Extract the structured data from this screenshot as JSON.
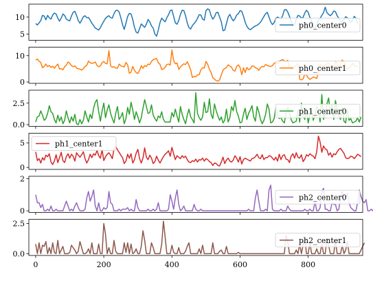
{
  "chart_data": {
    "type": "line",
    "title": "",
    "xlabel": "",
    "xlim": [
      -20,
      960
    ],
    "x_ticks": [
      0,
      200,
      400,
      600,
      800
    ],
    "x_tick_labels": [
      "0",
      "200",
      "400",
      "600",
      "800"
    ],
    "x_step": 5,
    "n_points": 190,
    "panels": [
      {
        "name": "ph0_center0",
        "color": "#1f77b4",
        "ylim": [
          3.2,
          13.8
        ],
        "yticks": [
          5,
          10
        ],
        "ytick_labels": [
          "5",
          "10"
        ],
        "legend": "right",
        "values": [
          8.1,
          7.7,
          8.3,
          9.0,
          10.5,
          10.3,
          9.2,
          10.5,
          9.8,
          9.4,
          10.6,
          11.2,
          10.9,
          9.7,
          8.8,
          9.7,
          10.9,
          10.5,
          9.4,
          9.1,
          8.9,
          10.3,
          11.4,
          11.7,
          10.5,
          9.0,
          8.2,
          9.1,
          10.1,
          10.4,
          9.8,
          9.9,
          9.1,
          8.2,
          7.5,
          6.8,
          6.5,
          6.2,
          6.9,
          7.9,
          8.8,
          9.6,
          10.1,
          10.4,
          9.8,
          9.7,
          11.0,
          11.9,
          12.0,
          11.5,
          9.8,
          7.8,
          6.4,
          8.2,
          10.2,
          11.1,
          10.9,
          9.3,
          7.0,
          5.6,
          5.3,
          6.6,
          8.0,
          7.5,
          7.0,
          7.9,
          9.3,
          8.6,
          7.4,
          6.8,
          5.0,
          4.4,
          6.2,
          8.4,
          9.7,
          9.1,
          8.6,
          9.8,
          10.7,
          11.9,
          12.1,
          10.2,
          8.3,
          7.9,
          9.0,
          10.8,
          12.0,
          11.9,
          10.4,
          8.3,
          6.9,
          6.5,
          7.5,
          8.1,
          8.7,
          9.6,
          10.7,
          10.6,
          9.4,
          9.1,
          11.9,
          12.4,
          12.1,
          10.4,
          9.4,
          10.1,
          11.3,
          11.4,
          10.0,
          8.6,
          6.0,
          6.2,
          8.1,
          10.0,
          10.8,
          9.7,
          8.9,
          9.5,
          10.6,
          11.0,
          11.9,
          11.7,
          10.3,
          8.5,
          7.3,
          6.6,
          6.3,
          6.7,
          7.1,
          7.4,
          7.6,
          8.0,
          8.5,
          9.3,
          10.2,
          11.0,
          11.4,
          10.0,
          8.6,
          7.8,
          8.4,
          9.6,
          10.0,
          9.7,
          9.4,
          10.4,
          12.1,
          12.2,
          11.5,
          10.2,
          8.8,
          7.4,
          7.8,
          9.4,
          10.5,
          10.3,
          9.7,
          9.9,
          11.2,
          12.0,
          11.4,
          9.9,
          8.9,
          7.1,
          6.3,
          7.8,
          9.2,
          9.6,
          10.5,
          11.3,
          12.9,
          11.3,
          10.8,
          10.4,
          10.9,
          11.8,
          11.6,
          10.4,
          9.6,
          8.7,
          8.6,
          9.3,
          10.1,
          9.8,
          9.3,
          8.4,
          9.1,
          10.2,
          9.7,
          8.1
        ]
      },
      {
        "name": "ph0_center1",
        "color": "#ff7f0e",
        "ylim": [
          -0.5,
          13.2
        ],
        "yticks": [
          0,
          10
        ],
        "ytick_labels": [
          "0",
          "10"
        ],
        "legend": "right",
        "values": [
          8.3,
          8.7,
          7.9,
          7.4,
          5.4,
          5.9,
          6.8,
          5.8,
          6.3,
          5.5,
          6.0,
          5.2,
          6.1,
          6.8,
          4.9,
          5.1,
          4.6,
          5.8,
          6.4,
          7.6,
          7.1,
          6.2,
          5.8,
          6.1,
          5.3,
          5.0,
          4.9,
          4.5,
          5.1,
          5.9,
          6.3,
          7.9,
          7.3,
          7.1,
          7.2,
          7.6,
          6.3,
          5.8,
          6.1,
          7.3,
          7.8,
          7.0,
          6.9,
          11.9,
          6.1,
          5.6,
          5.8,
          5.3,
          5.2,
          6.8,
          6.1,
          5.9,
          5.7,
          7.4,
          6.5,
          3.3,
          3.7,
          5.9,
          4.4,
          3.6,
          3.2,
          4.4,
          6.2,
          5.2,
          6.2,
          5.9,
          6.8,
          6.6,
          7.8,
          8.5,
          8.7,
          8.9,
          7.3,
          6.7,
          4.7,
          5.0,
          5.5,
          6.6,
          6.8,
          6.4,
          12.1,
          8.1,
          6.9,
          7.2,
          4.8,
          5.7,
          6.4,
          6.9,
          6.6,
          7.7,
          6.3,
          4.6,
          1.7,
          2.1,
          2.0,
          2.7,
          2.8,
          4.6,
          5.4,
          5.3,
          7.8,
          6.7,
          4.8,
          3.6,
          1.6,
          1.1,
          0.5,
          0.3,
          0.8,
          2.7,
          4.5,
          5.1,
          5.5,
          6.5,
          6.0,
          5.6,
          4.4,
          4.1,
          5.9,
          6.5,
          5.5,
          2.7,
          5.4,
          3.6,
          5.5,
          4.7,
          5.0,
          6.1,
          6.0,
          5.4,
          5.2,
          4.4,
          5.4,
          5.9,
          5.8,
          6.6,
          6.3,
          6.0,
          5.9,
          6.2,
          7.1,
          7.3,
          7.0,
          7.9,
          8.2,
          8.5,
          8.0,
          7.8,
          8.2,
          5.3,
          4.9,
          5.3,
          5.8,
          6.4,
          7.0,
          1.1,
          0.8,
          1.2,
          3.0,
          2.6,
          1.6,
          1.0,
          1.4,
          1.9,
          1.7,
          1.3,
          3.7,
          6.8,
          6.1,
          6.4,
          6.2,
          6.8,
          7.1,
          5.9,
          5.0,
          4.4,
          7.9,
          7.2,
          5.1,
          6.7,
          8.3,
          7.5,
          6.1,
          4.7,
          5.4,
          5.8,
          7.1,
          6.4,
          5.8,
          6.0
        ]
      },
      {
        "name": "ph1_center0",
        "color": "#2ca02c",
        "ylim": [
          -0.2,
          4.0
        ],
        "yticks": [
          0,
          2.5
        ],
        "ytick_labels": [
          "0.0",
          "2.5"
        ],
        "legend": "right",
        "values": [
          0.3,
          0.9,
          1.0,
          1.6,
          1.1,
          0.5,
          0.7,
          1.3,
          2.2,
          1.5,
          1.3,
          0.6,
          0.2,
          1.1,
          0.4,
          0.9,
          0.1,
          0.5,
          1.6,
          0.8,
          0.2,
          0.9,
          0.4,
          1.2,
          0.1,
          0.0,
          0.6,
          0.1,
          0.5,
          1.6,
          0.9,
          0.3,
          1.2,
          0.7,
          1.9,
          2.6,
          2.9,
          1.5,
          0.4,
          1.6,
          2.5,
          0.8,
          1.7,
          2.3,
          1.3,
          0.7,
          0.2,
          1.3,
          2.1,
          0.6,
          0.9,
          1.4,
          0.1,
          0.7,
          2.0,
          1.2,
          2.6,
          1.7,
          0.6,
          1.5,
          0.9,
          0.2,
          0.8,
          1.9,
          2.9,
          2.1,
          1.3,
          1.4,
          2.3,
          1.1,
          0.7,
          0.4,
          1.0,
          0.8,
          1.5,
          0.6,
          0.3,
          0.3,
          0.3,
          0.3,
          1.4,
          0.9,
          1.8,
          1.0,
          0.3,
          2.1,
          1.2,
          0.6,
          0.1,
          1.1,
          1.8,
          0.9,
          0.6,
          0.2,
          3.7,
          1.3,
          0.8,
          0.5,
          0.9,
          2.6,
          1.4,
          1.5,
          3.0,
          1.2,
          0.7,
          2.4,
          1.6,
          1.0,
          0.5,
          0.9,
          0.2,
          0.5,
          1.8,
          0.3,
          0.8,
          2.1,
          1.6,
          2.8,
          1.5,
          1.0,
          0.2,
          0.3,
          1.2,
          1.9,
          0.6,
          1.3,
          1.7,
          2.2,
          0.9,
          0.4,
          2.1,
          1.5,
          0.6,
          0.1,
          0.5,
          1.2,
          2.4,
          1.8,
          0.2,
          0.3,
          0.7,
          2.0,
          1.2,
          0.7,
          0.8,
          0.4,
          0.2,
          1.4,
          2.0,
          1.3,
          0.6,
          0.2,
          0.3,
          0.4,
          1.7,
          0.3,
          2.5,
          1.1,
          0.6,
          1.8,
          0.2,
          1.2,
          1.6,
          0.5,
          1.1,
          2.1,
          1.6,
          0.3,
          3.5,
          0.6,
          1.2,
          2.4,
          3.1,
          1.2,
          2.3,
          0.6,
          2.8,
          1.8,
          1.0,
          0.6,
          2.0,
          0.4,
          0.2,
          1.8,
          0.5,
          0.7,
          0.2,
          0.3,
          0.4,
          0.8,
          0.3,
          0.9
        ]
      },
      {
        "name": "ph1_center1",
        "color": "#d62728",
        "ylim": [
          -0.4,
          7.0
        ],
        "yticks": [
          0,
          5
        ],
        "ytick_labels": [
          "0",
          "5"
        ],
        "legend": "left",
        "values": [
          3.2,
          1.4,
          1.8,
          0.9,
          2.0,
          1.5,
          2.5,
          2.2,
          2.8,
          1.1,
          0.6,
          1.3,
          2.6,
          1.0,
          2.0,
          3.1,
          1.4,
          1.0,
          2.2,
          2.8,
          1.9,
          2.7,
          2.3,
          1.3,
          3.0,
          2.5,
          2.1,
          2.6,
          3.2,
          1.8,
          0.9,
          1.6,
          2.7,
          2.0,
          2.8,
          2.5,
          3.5,
          2.4,
          1.9,
          3.6,
          1.4,
          2.2,
          2.7,
          3.0,
          2.5,
          1.8,
          3.8,
          4.3,
          3.6,
          3.1,
          2.5,
          2.0,
          0.8,
          1.3,
          2.7,
          1.9,
          2.8,
          0.9,
          1.6,
          2.9,
          3.7,
          1.8,
          0.9,
          1.9,
          4.0,
          2.1,
          1.6,
          2.5,
          1.9,
          0.8,
          1.2,
          2.3,
          1.5,
          0.9,
          1.6,
          2.2,
          2.7,
          3.0,
          3.4,
          2.3,
          4.1,
          2.8,
          1.6,
          2.4,
          2.1,
          1.8,
          2.4,
          2.0,
          2.3,
          1.6,
          1.1,
          1.0,
          1.4,
          1.2,
          1.7,
          1.1,
          1.6,
          1.5,
          1.9,
          1.3,
          1.8,
          1.6,
          1.2,
          1.0,
          0.4,
          0.9,
          0.8,
          0.4,
          0.3,
          1.1,
          2.1,
          0.8,
          1.5,
          1.9,
          1.3,
          1.1,
          1.5,
          2.4,
          1.9,
          1.1,
          2.2,
          0.7,
          1.6,
          1.9,
          1.7,
          1.5,
          1.3,
          1.8,
          1.9,
          2.2,
          2.7,
          2.0,
          1.8,
          2.6,
          1.6,
          2.0,
          2.0,
          2.4,
          2.3,
          1.9,
          1.5,
          2.1,
          1.3,
          2.7,
          1.6,
          2.4,
          2.6,
          1.7,
          1.6,
          1.0,
          2.3,
          2.8,
          1.9,
          3.0,
          2.1,
          1.9,
          2.6,
          1.2,
          1.7,
          2.6,
          2.3,
          2.8,
          2.5,
          2.3,
          1.8,
          3.2,
          6.4,
          5.2,
          3.1,
          4.4,
          3.8,
          3.6,
          2.5,
          3.0,
          2.1,
          2.8,
          2.6,
          3.2,
          3.7,
          3.9,
          3.4,
          2.9,
          2.0,
          1.8,
          1.9,
          2.3,
          2.2,
          1.8,
          2.2,
          2.7,
          2.5,
          2.2
        ]
      },
      {
        "name": "ph2_center0",
        "color": "#9467bd",
        "ylim": [
          -0.1,
          2.15
        ],
        "yticks": [
          0,
          2
        ],
        "ytick_labels": [
          "0",
          "2"
        ],
        "legend": "right",
        "values": [
          1.0,
          0.5,
          0.5,
          0.2,
          0.4,
          0.0,
          0.0,
          0.1,
          0.0,
          0.3,
          0.0,
          0.0,
          0.1,
          0.0,
          0.0,
          0.0,
          0.0,
          0.3,
          0.6,
          0.3,
          0.0,
          0.1,
          0.0,
          0.3,
          0.5,
          0.2,
          0.0,
          0.0,
          0.0,
          0.1,
          0.8,
          1.2,
          0.6,
          0.9,
          1.3,
          0.3,
          0.0,
          0.5,
          0.0,
          0.0,
          0.2,
          0.1,
          0.2,
          1.2,
          0.5,
          0.4,
          0.0,
          0.0,
          0.0,
          0.1,
          0.0,
          0.1,
          0.1,
          0.1,
          0.2,
          0.0,
          0.1,
          0.0,
          0.0,
          0.7,
          0.2,
          0.0,
          0.0,
          0.0,
          0.0,
          0.0,
          0.1,
          0.0,
          0.0,
          0.1,
          0.0,
          0.1,
          0.5,
          0.0,
          0.0,
          0.0,
          0.0,
          0.0,
          0.1,
          1.0,
          0.6,
          0.1,
          0.8,
          1.3,
          0.4,
          0.0,
          0.1,
          0.3,
          0.0,
          0.0,
          0.0,
          0.0,
          0.0,
          0.4,
          0.1,
          0.0,
          0.0,
          0.1,
          0.0,
          0.0,
          0.0,
          0.0,
          0.0,
          0.0,
          0.0,
          0.0,
          0.0,
          0.0,
          0.0,
          0.0,
          0.0,
          0.0,
          0.0,
          0.0,
          0.0,
          0.0,
          0.0,
          0.0,
          0.0,
          0.0,
          0.0,
          0.0,
          0.0,
          0.0,
          0.0,
          0.1,
          0.0,
          0.0,
          0.0,
          0.8,
          1.3,
          0.6,
          0.0,
          0.0,
          0.0,
          0.1,
          0.0,
          1.3,
          1.6,
          0.1,
          0.0,
          0.0,
          0.0,
          0.0,
          0.1,
          0.0,
          0.0,
          0.0,
          0.3,
          0.1,
          0.0,
          0.0,
          0.0,
          0.0,
          0.0,
          0.0,
          0.0,
          0.0,
          0.1,
          0.0,
          0.0,
          0.1,
          0.0,
          0.0,
          0.6,
          0.0,
          0.0,
          0.2,
          1.2,
          1.4,
          0.1,
          0.1,
          0.0,
          0.0,
          0.5,
          0.4,
          0.4,
          0.0,
          0.1,
          0.9,
          1.2,
          0.6,
          0.8,
          1.1,
          0.5,
          0.2,
          0.1,
          0.0,
          0.0,
          0.5,
          1.3,
          0.9,
          0.6,
          0.5,
          0.7,
          0.0,
          0.0,
          0.1,
          0.0,
          0.3
        ]
      },
      {
        "name": "ph2_center1",
        "color": "#8c564b",
        "ylim": [
          -0.15,
          2.85
        ],
        "yticks": [
          0,
          2.5
        ],
        "ytick_labels": [
          "0.0",
          "2.5"
        ],
        "legend": "right",
        "values": [
          0.8,
          0.0,
          0.9,
          0.0,
          0.7,
          0.6,
          1.0,
          0.0,
          0.5,
          0.0,
          0.9,
          0.1,
          0.0,
          1.1,
          0.0,
          0.3,
          0.6,
          0.0,
          0.0,
          0.0,
          0.1,
          0.7,
          0.5,
          0.3,
          0.0,
          0.2,
          1.0,
          0.5,
          0.0,
          0.0,
          0.1,
          0.4,
          0.0,
          0.9,
          0.0,
          0.0,
          0.0,
          0.8,
          0.0,
          0.0,
          2.5,
          1.6,
          0.0,
          0.5,
          0.0,
          0.0,
          1.1,
          0.2,
          0.0,
          0.0,
          0.0,
          0.0,
          0.9,
          0.1,
          0.9,
          0.0,
          0.8,
          0.0,
          0.1,
          0.4,
          0.0,
          0.0,
          0.6,
          1.9,
          1.1,
          0.0,
          0.0,
          0.0,
          0.9,
          0.5,
          0.0,
          0.0,
          0.0,
          0.0,
          0.8,
          2.7,
          1.4,
          0.0,
          0.0,
          0.0,
          0.7,
          0.1,
          0.0,
          0.0,
          0.5,
          0.0,
          0.0,
          0.0,
          0.2,
          0.6,
          0.9,
          0.0,
          0.0,
          0.0,
          0.0,
          0.0,
          0.4,
          0.0,
          0.7,
          0.0,
          0.0,
          0.0,
          0.0,
          0.0,
          0.9,
          0.0,
          0.0,
          0.0,
          0.2,
          0.3,
          0.0,
          0.0,
          0.6,
          0.0,
          0.0,
          0.0,
          0.0,
          0.0,
          0.0,
          0.1,
          0.0,
          0.0,
          0.0,
          0.0,
          0.0,
          0.0,
          0.0,
          0.0,
          0.0,
          0.0,
          0.0,
          0.0,
          0.0,
          0.0,
          0.0,
          0.0,
          0.0,
          0.0,
          0.0,
          0.0,
          0.0,
          0.0,
          0.0,
          0.0,
          0.0,
          0.0,
          0.0,
          1.5,
          1.0,
          0.0,
          0.0,
          0.0,
          0.0,
          0.3,
          0.0,
          0.8,
          0.0,
          0.7,
          1.3,
          0.0,
          0.0,
          0.9,
          0.0,
          0.0,
          0.0,
          0.4,
          0.0,
          0.0,
          0.8,
          0.0,
          0.0,
          1.3,
          0.7,
          0.0,
          0.0,
          0.0,
          1.1,
          0.0,
          0.0,
          0.0,
          0.7,
          0.0,
          0.3,
          1.0,
          0.0,
          0.0,
          0.0,
          0.0,
          0.0,
          0.0,
          0.0,
          0.3,
          0.6,
          0.9
        ]
      }
    ]
  }
}
